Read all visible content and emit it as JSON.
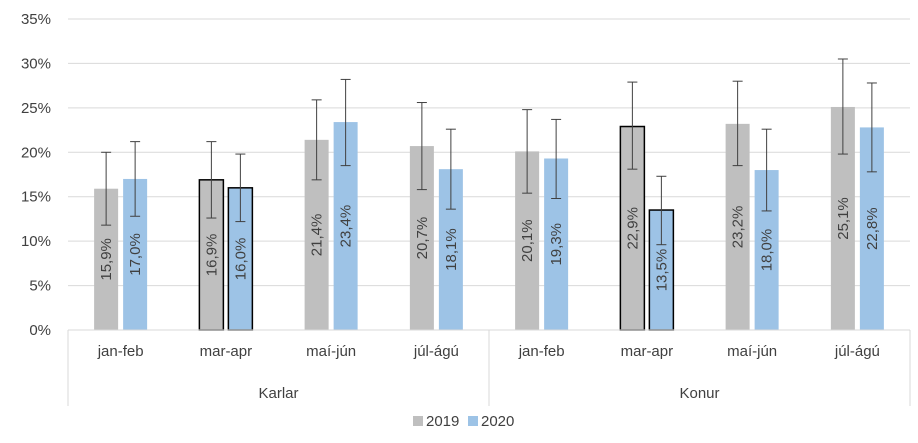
{
  "chart_data": {
    "type": "bar",
    "groups": [
      "Karlar",
      "Konur"
    ],
    "categories": [
      "jan-feb",
      "mar-apr",
      "maí-jún",
      "júl-ágú",
      "jan-feb",
      "mar-apr",
      "maí-jún",
      "júl-ágú"
    ],
    "series": [
      {
        "name": "2019",
        "color": "#bfbfbf",
        "values": [
          15.9,
          16.9,
          21.4,
          20.7,
          20.1,
          22.9,
          23.2,
          25.1
        ],
        "labels": [
          "15,9%",
          "16,9%",
          "21,4%",
          "20,7%",
          "20,1%",
          "22,9%",
          "23,2%",
          "25,1%"
        ],
        "err_low": [
          11.8,
          12.6,
          16.9,
          15.8,
          15.4,
          18.1,
          18.5,
          19.8
        ],
        "err_high": [
          20.0,
          21.2,
          25.9,
          25.6,
          24.8,
          27.9,
          28.0,
          30.5
        ]
      },
      {
        "name": "2020",
        "color": "#9dc3e6",
        "values": [
          17.0,
          16.0,
          23.4,
          18.1,
          19.3,
          13.5,
          18.0,
          22.8
        ],
        "labels": [
          "17,0%",
          "16,0%",
          "23,4%",
          "18,1%",
          "19,3%",
          "13,5%",
          "18,0%",
          "22,8%"
        ],
        "err_low": [
          12.8,
          12.2,
          18.5,
          13.6,
          14.8,
          9.6,
          13.4,
          17.8
        ],
        "err_high": [
          21.2,
          19.8,
          28.2,
          22.6,
          23.7,
          17.3,
          22.6,
          27.8
        ]
      }
    ],
    "outlined_categories": [
      1,
      5
    ],
    "ylim": [
      0,
      35
    ],
    "yticks": [
      0,
      5,
      10,
      15,
      20,
      25,
      30,
      35
    ],
    "ytick_labels": [
      "0%",
      "5%",
      "10%",
      "15%",
      "20%",
      "25%",
      "30%",
      "35%"
    ],
    "grid": true,
    "legend_position": "bottom"
  }
}
